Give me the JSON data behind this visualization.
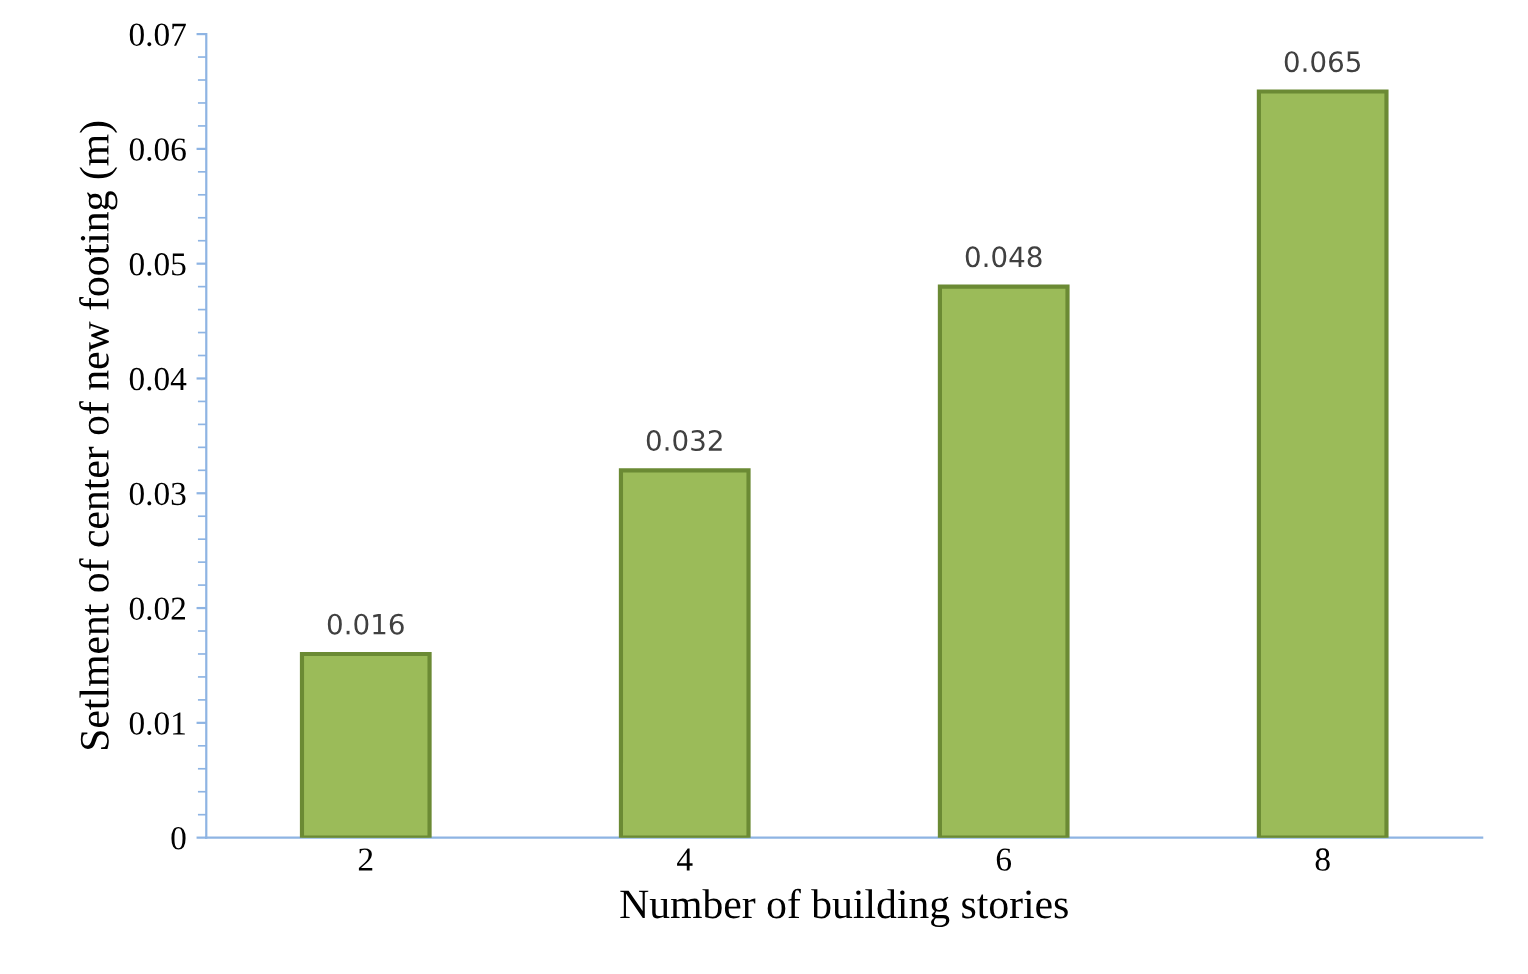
{
  "chart_data": {
    "type": "bar",
    "xlabel": "Number of building stories",
    "ylabel": "Setlment of center of new footing (m)",
    "categories": [
      "2",
      "4",
      "6",
      "8"
    ],
    "values": [
      0.016,
      0.032,
      0.048,
      0.065
    ],
    "color": "#9bbb59",
    "ylim": [
      0,
      0.07
    ],
    "yticks": [
      0,
      0.01,
      0.02,
      0.03,
      0.04,
      0.05,
      0.06,
      0.07
    ],
    "grid": false,
    "data_labels": true
  }
}
